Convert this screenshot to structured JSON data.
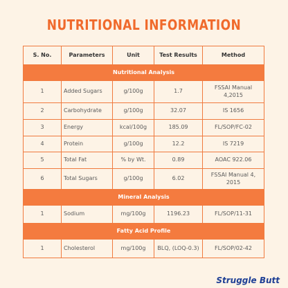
{
  "header": {
    "title": "NUTRITIONAL INFORMATION"
  },
  "table": {
    "columns": [
      "S. No.",
      "Parameters",
      "Unit",
      "Test Results",
      "Method"
    ],
    "sections": [
      {
        "title": "Nutritional Analysis",
        "rows": [
          [
            "1",
            "Added Sugars",
            "g/100g",
            "1.7",
            "FSSAI Manual 4,2015"
          ],
          [
            "2",
            "Carbohydrate",
            "g/100g",
            "32.07",
            "IS 1656"
          ],
          [
            "3",
            "Energy",
            "kcal/100g",
            "185.09",
            "FL/SOP/FC-02"
          ],
          [
            "4",
            "Protein",
            "g/100g",
            "12.2",
            "IS 7219"
          ],
          [
            "5",
            "Total Fat",
            "% by Wt.",
            "0.89",
            "AOAC 922.06"
          ],
          [
            "6",
            "Total Sugars",
            "g/100g",
            "6.02",
            "FSSAI Manual 4, 2015"
          ]
        ]
      },
      {
        "title": "Mineral Analysis",
        "rows": [
          [
            "1",
            "Sodium",
            "mg/100g",
            "1196.23",
            "FL/SOP/11-31"
          ]
        ]
      },
      {
        "title": "Fatty Acid Profile",
        "rows": [
          [
            "1",
            "Cholesterol",
            "mg/100g",
            "BLQ, (LOQ-0.3)",
            "FL/SOP/02-42"
          ]
        ]
      }
    ]
  },
  "footer": {
    "brand": "Struggle Butt"
  }
}
